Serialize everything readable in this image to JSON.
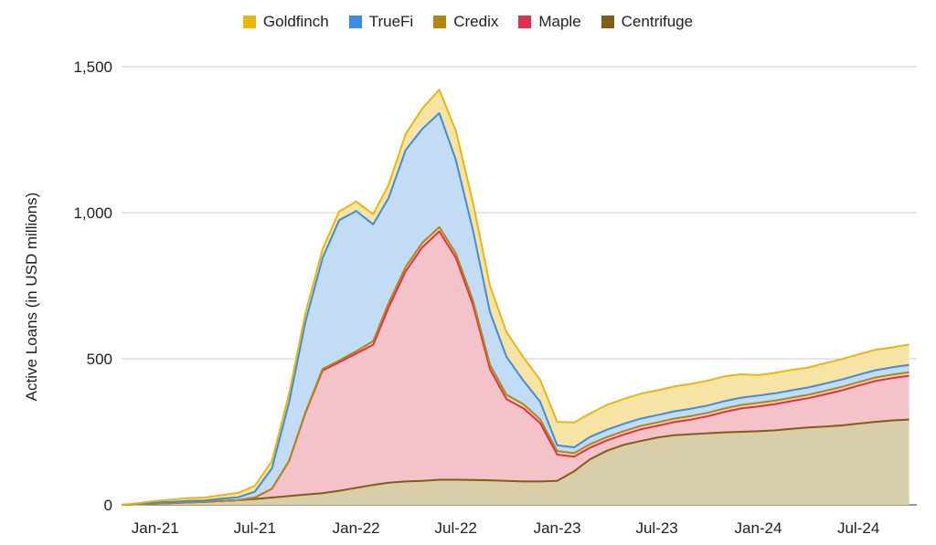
{
  "chart_data": {
    "type": "area",
    "stacked": true,
    "title": "",
    "xlabel": "",
    "ylabel": "Active Loans (in USD millions)",
    "ylim": [
      0,
      1500
    ],
    "xlim": [
      "2020-11-01",
      "2024-10-15"
    ],
    "yticks": [
      {
        "value": 0,
        "label": "0"
      },
      {
        "value": 500,
        "label": "500"
      },
      {
        "value": 1000,
        "label": "1,000"
      },
      {
        "value": 1500,
        "label": "1,500"
      }
    ],
    "xticks": [
      {
        "date": "2021-01-01",
        "label": "Jan-21"
      },
      {
        "date": "2021-07-01",
        "label": "Jul-21"
      },
      {
        "date": "2022-01-01",
        "label": "Jan-22"
      },
      {
        "date": "2022-07-01",
        "label": "Jul-22"
      },
      {
        "date": "2023-01-01",
        "label": "Jan-23"
      },
      {
        "date": "2023-07-01",
        "label": "Jul-23"
      },
      {
        "date": "2024-01-01",
        "label": "Jan-24"
      },
      {
        "date": "2024-07-01",
        "label": "Jul-24"
      }
    ],
    "grid": true,
    "legend_position": "top",
    "dates": [
      "2020-11-01",
      "2020-12-01",
      "2021-01-01",
      "2021-02-01",
      "2021-03-01",
      "2021-04-01",
      "2021-05-01",
      "2021-06-01",
      "2021-07-01",
      "2021-08-01",
      "2021-09-01",
      "2021-10-01",
      "2021-11-01",
      "2021-12-01",
      "2022-01-01",
      "2022-02-01",
      "2022-03-01",
      "2022-04-01",
      "2022-05-01",
      "2022-06-01",
      "2022-07-01",
      "2022-08-01",
      "2022-09-01",
      "2022-10-01",
      "2022-11-01",
      "2022-12-01",
      "2023-01-01",
      "2023-02-01",
      "2023-03-01",
      "2023-04-01",
      "2023-05-01",
      "2023-06-01",
      "2023-07-01",
      "2023-08-01",
      "2023-09-01",
      "2023-10-01",
      "2023-11-01",
      "2023-12-01",
      "2024-01-01",
      "2024-02-01",
      "2024-03-01",
      "2024-04-01",
      "2024-05-01",
      "2024-06-01",
      "2024-07-01",
      "2024-08-01",
      "2024-09-01",
      "2024-10-01"
    ],
    "series": [
      {
        "name": "Centrifuge",
        "color": "#7f5f12",
        "fill": "#d9ceaa",
        "values": [
          0,
          2,
          4,
          6,
          8,
          10,
          13,
          16,
          20,
          25,
          30,
          35,
          40,
          48,
          58,
          68,
          76,
          80,
          82,
          86,
          86,
          85,
          84,
          82,
          80,
          80,
          82,
          115,
          155,
          185,
          205,
          218,
          230,
          238,
          242,
          245,
          248,
          250,
          252,
          255,
          260,
          265,
          268,
          272,
          278,
          284,
          289,
          292
        ]
      },
      {
        "name": "Maple",
        "color": "#e0304f",
        "fill": "#f4c2c9",
        "values": [
          0,
          0,
          0,
          0,
          0,
          0,
          0,
          0,
          5,
          30,
          120,
          280,
          420,
          440,
          460,
          480,
          600,
          720,
          800,
          850,
          760,
          600,
          380,
          280,
          250,
          200,
          90,
          50,
          40,
          35,
          35,
          40,
          40,
          45,
          50,
          58,
          70,
          80,
          85,
          90,
          95,
          100,
          110,
          120,
          130,
          140,
          145,
          150
        ]
      },
      {
        "name": "Credix",
        "color": "#b5850f",
        "fill": "#e8d7b5",
        "values": [
          0,
          0,
          0,
          0,
          0,
          0,
          0,
          0,
          0,
          0,
          0,
          2,
          5,
          6,
          8,
          12,
          15,
          15,
          15,
          15,
          15,
          15,
          15,
          15,
          14,
          13,
          12,
          12,
          12,
          12,
          12,
          12,
          12,
          12,
          12,
          12,
          12,
          12,
          12,
          12,
          12,
          12,
          12,
          12,
          12,
          12,
          12,
          12
        ]
      },
      {
        "name": "TrueFi",
        "color": "#3b8be8",
        "fill": "#c2dcf6",
        "values": [
          0,
          2,
          4,
          4,
          5,
          5,
          8,
          10,
          20,
          70,
          200,
          310,
          380,
          480,
          480,
          400,
          360,
          400,
          390,
          390,
          320,
          240,
          180,
          130,
          80,
          60,
          20,
          20,
          25,
          25,
          25,
          25,
          25,
          25,
          25,
          25,
          25,
          25,
          25,
          25,
          25,
          25,
          25,
          25,
          25,
          25,
          25,
          25
        ]
      },
      {
        "name": "Goldfinch",
        "color": "#e8b70f",
        "fill": "#f8e3a6",
        "values": [
          0,
          2,
          5,
          8,
          10,
          10,
          12,
          15,
          20,
          25,
          30,
          30,
          30,
          30,
          32,
          35,
          45,
          55,
          70,
          80,
          100,
          95,
          90,
          85,
          80,
          75,
          80,
          85,
          80,
          85,
          85,
          85,
          85,
          85,
          85,
          85,
          85,
          80,
          70,
          70,
          70,
          68,
          70,
          70,
          70,
          70,
          68,
          70
        ]
      }
    ],
    "legend_order": [
      "Goldfinch",
      "TrueFi",
      "Credix",
      "Maple",
      "Centrifuge"
    ]
  },
  "legend": {
    "items": [
      {
        "label": "Goldfinch",
        "color": "#e8b70f"
      },
      {
        "label": "TrueFi",
        "color": "#3b8be8"
      },
      {
        "label": "Credix",
        "color": "#b5850f"
      },
      {
        "label": "Maple",
        "color": "#e0304f"
      },
      {
        "label": "Centrifuge",
        "color": "#7f5f12"
      }
    ]
  }
}
